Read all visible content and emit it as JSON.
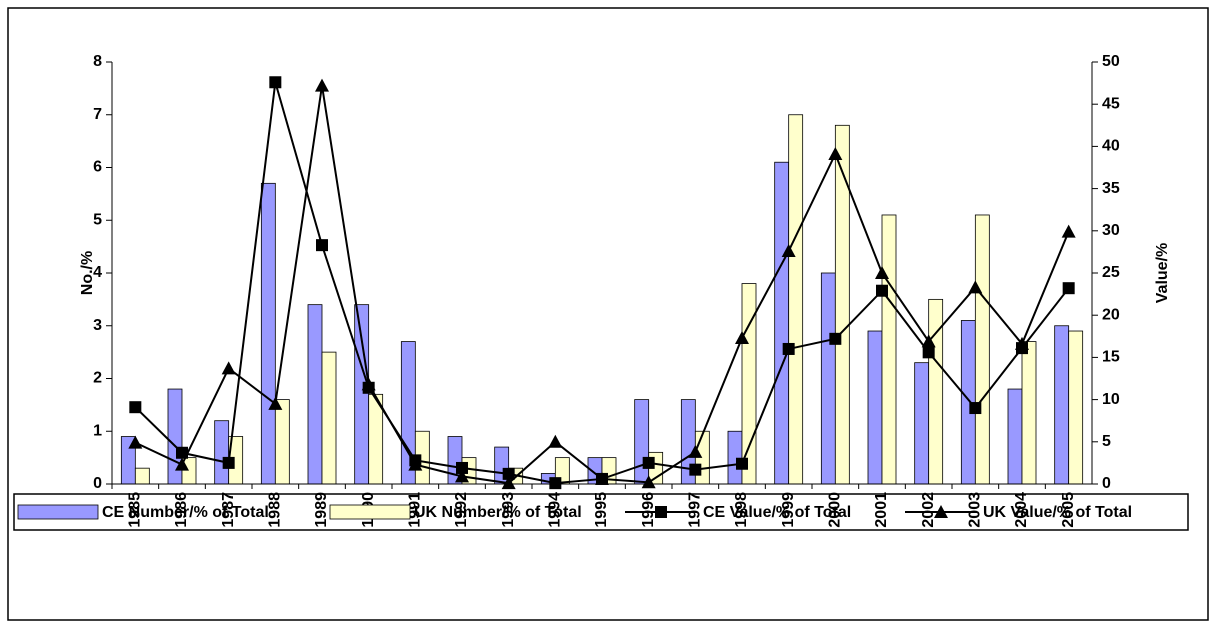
{
  "chart_data": {
    "type": "bar",
    "categories": [
      "1985",
      "1986",
      "1987",
      "1988",
      "1989",
      "1990",
      "1991",
      "1992",
      "1993",
      "1994",
      "1995",
      "1996",
      "1997",
      "1998",
      "1999",
      "2000",
      "2001",
      "2002",
      "2003",
      "2004",
      "2005"
    ],
    "y_label": "No./%",
    "y2_label": "Value/%",
    "ylim": [
      0,
      8
    ],
    "yticks": [
      0,
      1,
      2,
      3,
      4,
      5,
      6,
      7,
      8
    ],
    "y2lim": [
      0,
      50
    ],
    "y2ticks": [
      0,
      5,
      10,
      15,
      20,
      25,
      30,
      35,
      40,
      45,
      50
    ],
    "series": [
      {
        "name": "CE Number/% of Total",
        "type": "bar",
        "color": "#9999ff",
        "values": [
          0.9,
          1.8,
          1.2,
          5.7,
          3.4,
          3.4,
          2.7,
          0.9,
          0.7,
          0.2,
          0.5,
          1.6,
          1.6,
          1.0,
          6.1,
          4.0,
          2.9,
          2.3,
          3.1,
          1.8,
          3.0
        ]
      },
      {
        "name": "UK Number/% of Total",
        "type": "bar",
        "color": "#ffffcc",
        "values": [
          0.3,
          0.5,
          0.9,
          1.6,
          2.5,
          1.7,
          1.0,
          0.5,
          0.3,
          0.5,
          0.5,
          0.6,
          1.0,
          3.8,
          7.0,
          6.8,
          5.1,
          3.5,
          5.1,
          2.7,
          2.9
        ]
      },
      {
        "name": "CE Value/% of Total",
        "type": "line",
        "marker": "square",
        "axis": "y2",
        "color": "#000000",
        "values": [
          9.1,
          3.7,
          2.5,
          47.6,
          28.3,
          11.4,
          2.8,
          1.9,
          1.2,
          0.1,
          0.6,
          2.5,
          1.7,
          2.4,
          16.0,
          17.2,
          22.9,
          15.6,
          9.0,
          16.1,
          23.2
        ]
      },
      {
        "name": "UK Value/% of Total",
        "type": "line",
        "marker": "triangle",
        "axis": "y2",
        "color": "#000000",
        "values": [
          4.9,
          2.3,
          13.7,
          9.5,
          47.2,
          11.8,
          2.3,
          0.9,
          0.1,
          5.0,
          0.6,
          0.2,
          3.8,
          17.3,
          27.6,
          39.1,
          25.0,
          16.9,
          23.3,
          16.6,
          29.9
        ]
      }
    ]
  }
}
